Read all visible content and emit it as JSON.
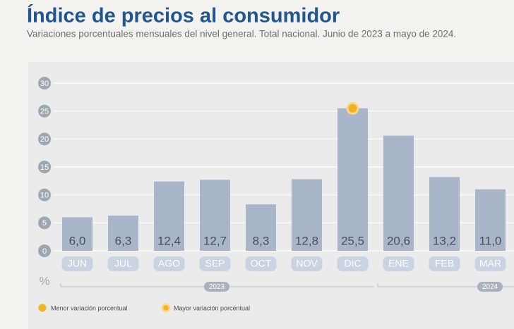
{
  "chart_data": {
    "type": "bar",
    "title": "Índice de precios al consumidor",
    "subtitle": "Variaciones porcentuales mensuales del nivel general. Total nacional. Junio de 2023 a mayo de 2024.",
    "categories": [
      "JUN",
      "JUL",
      "AGO",
      "SEP",
      "OCT",
      "NOV",
      "DIC",
      "ENE",
      "FEB",
      "MAR"
    ],
    "values": [
      6.0,
      6.3,
      12.4,
      12.7,
      8.3,
      12.8,
      25.5,
      20.6,
      13.2,
      11.0
    ],
    "value_labels": [
      "6,0",
      "6,3",
      "12,4",
      "12,7",
      "8,3",
      "12,8",
      "25,5",
      "20,6",
      "13,2",
      "11,0"
    ],
    "color": "#a9b5c9",
    "highlight_color": "#f0b323",
    "ylim": [
      0,
      30
    ],
    "yticks": [
      0,
      5,
      10,
      15,
      20,
      25,
      30
    ],
    "grid": true,
    "y_unit": "%",
    "year_labels": [
      "2023",
      "2024"
    ],
    "legend": [
      "Menor variación porcentual",
      "Mayor variación porcentual"
    ]
  }
}
